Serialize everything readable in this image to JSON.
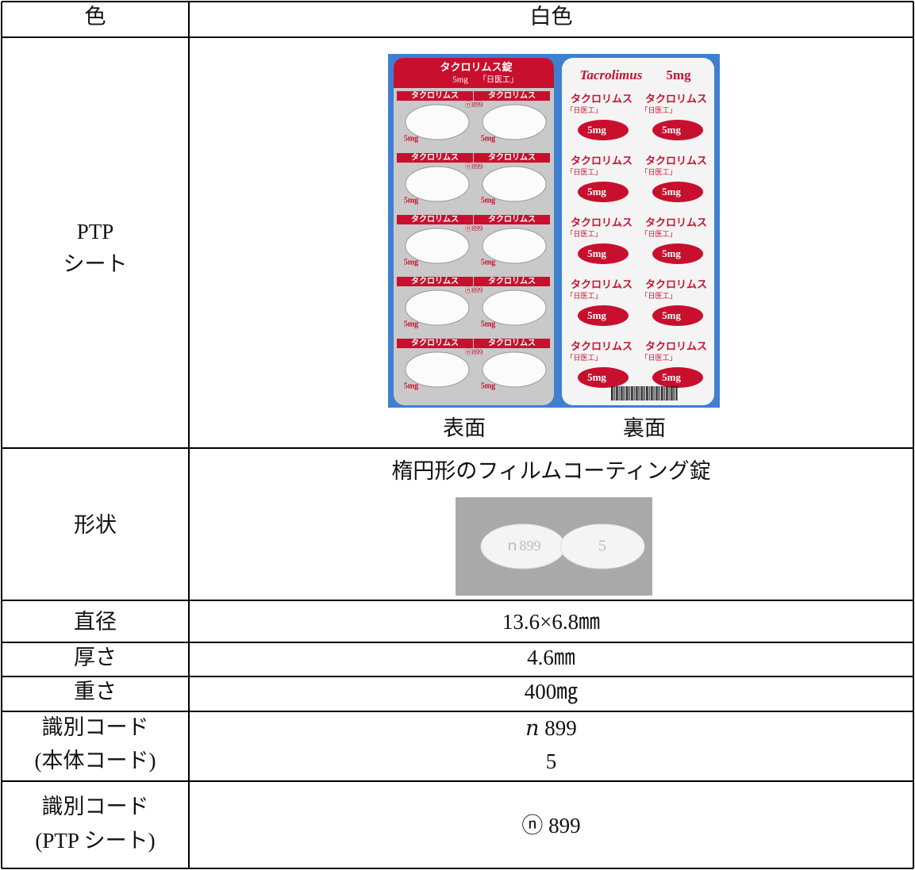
{
  "table": {
    "rows": [
      {
        "label": [
          "色"
        ],
        "content": [
          "白色"
        ]
      },
      {
        "label": [
          "PTP",
          "シート"
        ],
        "ptp": {
          "front": {
            "brand": "タクロリムス錠",
            "dose": "5mg",
            "maker": "「日医工」",
            "name": "タクロリムス",
            "code": "ⓝ899",
            "strength": "5mg",
            "caption": "表面"
          },
          "back": {
            "brand": "Tacrolimus",
            "dose": "5mg",
            "name": "タクロリムス",
            "maker": "「日医工」",
            "strength": "5mg",
            "caption": "裏面"
          }
        }
      },
      {
        "label": [
          "形状"
        ],
        "content": [
          "楕円形のフィルムコーティング錠"
        ],
        "tablet": {
          "front_imprint": "ｎ899",
          "back_imprint": "5"
        }
      },
      {
        "label": [
          "直径"
        ],
        "content": [
          "13.6×6.8㎜"
        ]
      },
      {
        "label": [
          "厚さ"
        ],
        "content": [
          "4.6㎜"
        ]
      },
      {
        "label": [
          "重さ"
        ],
        "content": [
          "400㎎"
        ]
      },
      {
        "label": [
          "識別コード",
          "(本体コード)"
        ],
        "content": [
          "𝑛 899",
          "5"
        ]
      },
      {
        "label": [
          "識別コード",
          "(PTP シート)"
        ],
        "content": [
          "ⓝ 899"
        ]
      }
    ]
  }
}
